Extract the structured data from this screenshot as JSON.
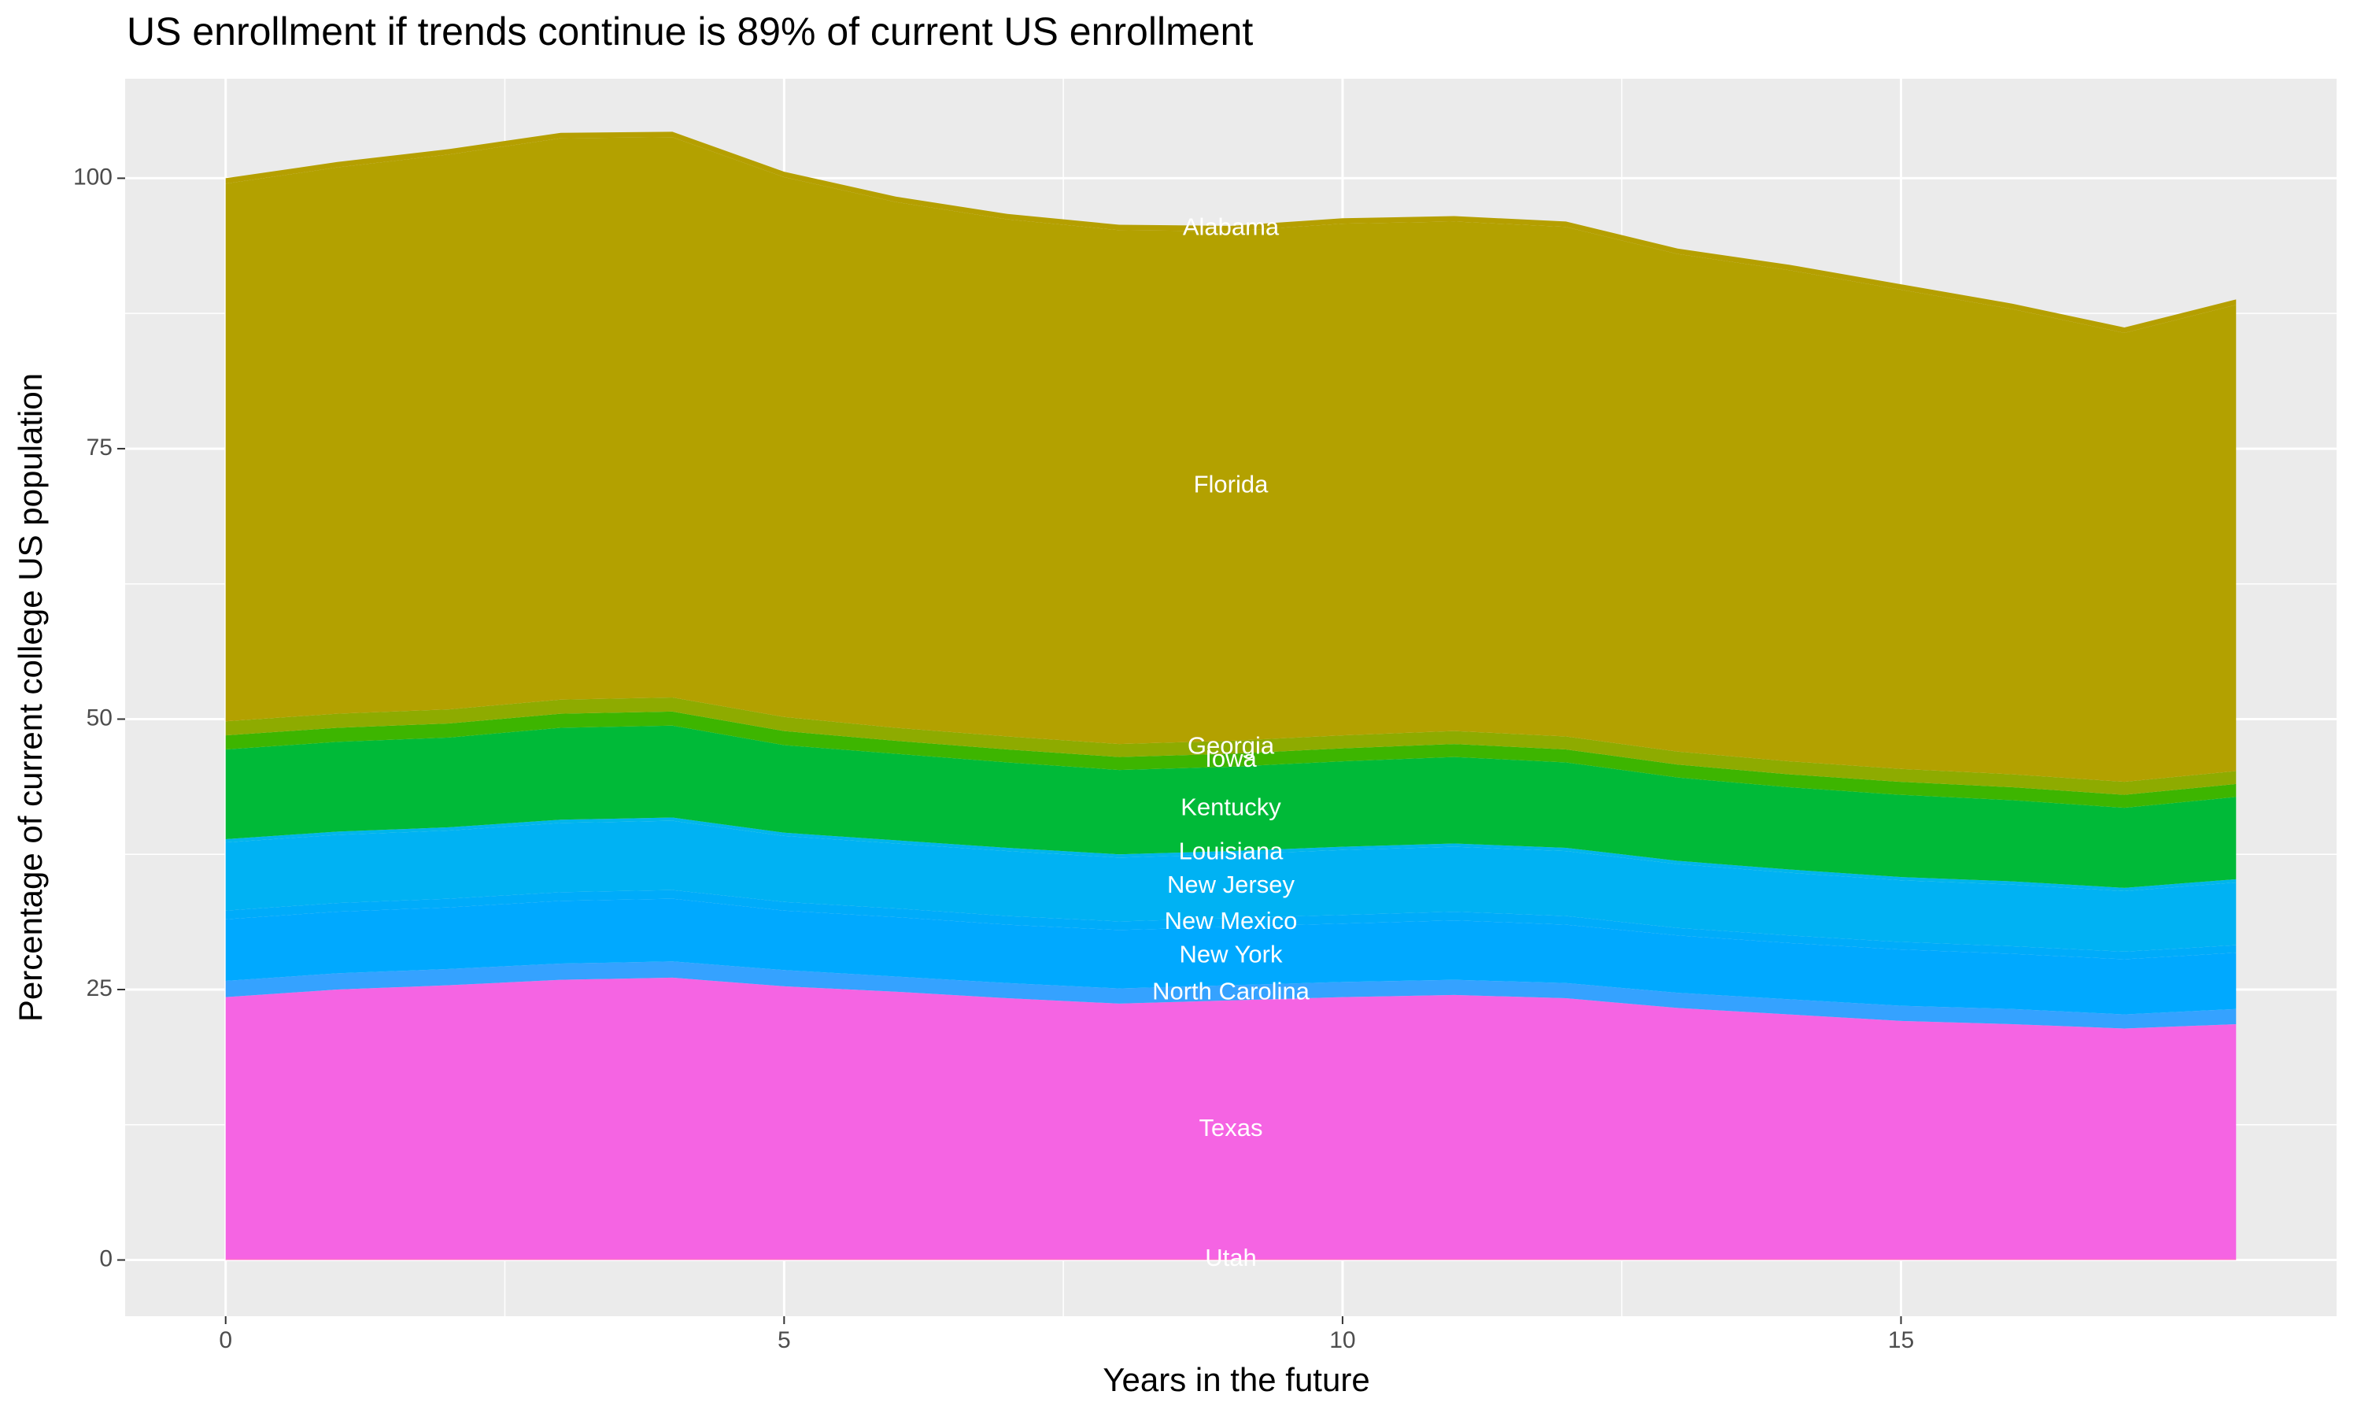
{
  "chart_data": {
    "type": "area",
    "stacked": true,
    "title": "US enrollment if trends continue is 89% of current US enrollment",
    "x_label": "Years in the future",
    "y_label": "Percentage of current college US population",
    "x": [
      0,
      1,
      2,
      3,
      4,
      5,
      6,
      7,
      8,
      9,
      10,
      11,
      12,
      13,
      14,
      15,
      16,
      17,
      18
    ],
    "xlim": [
      -0.9,
      18.9
    ],
    "ylim": [
      -5.2,
      109.2
    ],
    "xticks": [
      0,
      5,
      10,
      15
    ],
    "yticks": [
      0,
      25,
      50,
      75,
      100
    ],
    "grid": true,
    "series": [
      {
        "name": "Utah",
        "color": "#FF61C3",
        "values": [
          0.1,
          0.1,
          0.1,
          0.1,
          0.1,
          0.1,
          0.1,
          0.1,
          0.1,
          0.1,
          0.1,
          0.1,
          0.1,
          0.1,
          0.1,
          0.1,
          0.1,
          0.1,
          0.1
        ]
      },
      {
        "name": "Texas",
        "color": "#F564E3",
        "values": [
          24.2,
          24.9,
          25.3,
          25.8,
          26.0,
          25.2,
          24.7,
          24.1,
          23.6,
          23.9,
          24.2,
          24.4,
          24.1,
          23.2,
          22.6,
          22.0,
          21.7,
          21.3,
          21.7
        ]
      },
      {
        "name": "North Carolina",
        "color": "#35A2FF",
        "values": [
          1.5,
          1.5,
          1.5,
          1.5,
          1.5,
          1.5,
          1.4,
          1.4,
          1.4,
          1.4,
          1.4,
          1.4,
          1.4,
          1.4,
          1.4,
          1.4,
          1.4,
          1.3,
          1.4
        ]
      },
      {
        "name": "New York",
        "color": "#00A9FF",
        "values": [
          5.7,
          5.7,
          5.7,
          5.8,
          5.8,
          5.5,
          5.5,
          5.4,
          5.4,
          5.4,
          5.4,
          5.5,
          5.4,
          5.3,
          5.2,
          5.2,
          5.1,
          5.1,
          5.2
        ]
      },
      {
        "name": "New Mexico",
        "color": "#00ACFA",
        "values": [
          0.8,
          0.8,
          0.8,
          0.8,
          0.8,
          0.8,
          0.8,
          0.8,
          0.8,
          0.8,
          0.8,
          0.8,
          0.8,
          0.7,
          0.7,
          0.7,
          0.7,
          0.7,
          0.7
        ]
      },
      {
        "name": "New Jersey",
        "color": "#00B2F3",
        "values": [
          6.3,
          6.3,
          6.3,
          6.4,
          6.4,
          6.1,
          6.0,
          6.0,
          5.9,
          5.9,
          6.0,
          6.0,
          6.0,
          5.9,
          5.8,
          5.7,
          5.7,
          5.6,
          5.8
        ]
      },
      {
        "name": "Louisiana",
        "color": "#00B6EB",
        "values": [
          0.3,
          0.3,
          0.3,
          0.3,
          0.3,
          0.3,
          0.3,
          0.3,
          0.3,
          0.3,
          0.3,
          0.3,
          0.3,
          0.3,
          0.3,
          0.3,
          0.3,
          0.3,
          0.3
        ]
      },
      {
        "name": "Kentucky",
        "color": "#00BA38",
        "values": [
          8.3,
          8.3,
          8.3,
          8.5,
          8.5,
          8.1,
          8.0,
          7.9,
          7.8,
          7.8,
          7.9,
          8.0,
          7.9,
          7.7,
          7.6,
          7.6,
          7.5,
          7.4,
          7.6
        ]
      },
      {
        "name": "Iowa",
        "color": "#3DB500",
        "values": [
          1.3,
          1.3,
          1.3,
          1.3,
          1.3,
          1.3,
          1.2,
          1.2,
          1.2,
          1.2,
          1.2,
          1.2,
          1.2,
          1.2,
          1.2,
          1.2,
          1.2,
          1.2,
          1.2
        ]
      },
      {
        "name": "Georgia",
        "color": "#8EAB00",
        "values": [
          1.3,
          1.3,
          1.3,
          1.3,
          1.3,
          1.3,
          1.2,
          1.2,
          1.2,
          1.2,
          1.2,
          1.2,
          1.2,
          1.2,
          1.2,
          1.2,
          1.2,
          1.2,
          1.2
        ]
      },
      {
        "name": "Florida",
        "color": "#B3A100",
        "values": [
          49.7,
          50.5,
          51.3,
          51.9,
          51.8,
          49.9,
          48.6,
          47.8,
          47.5,
          47.1,
          47.3,
          47.1,
          47.1,
          46.0,
          45.4,
          44.3,
          43.0,
          41.5,
          43.1
        ]
      },
      {
        "name": "Alabama",
        "color": "#B59F00",
        "values": [
          0.5,
          0.5,
          0.5,
          0.5,
          0.5,
          0.5,
          0.5,
          0.5,
          0.5,
          0.5,
          0.5,
          0.5,
          0.5,
          0.5,
          0.5,
          0.5,
          0.5,
          0.5,
          0.5
        ]
      }
    ]
  }
}
